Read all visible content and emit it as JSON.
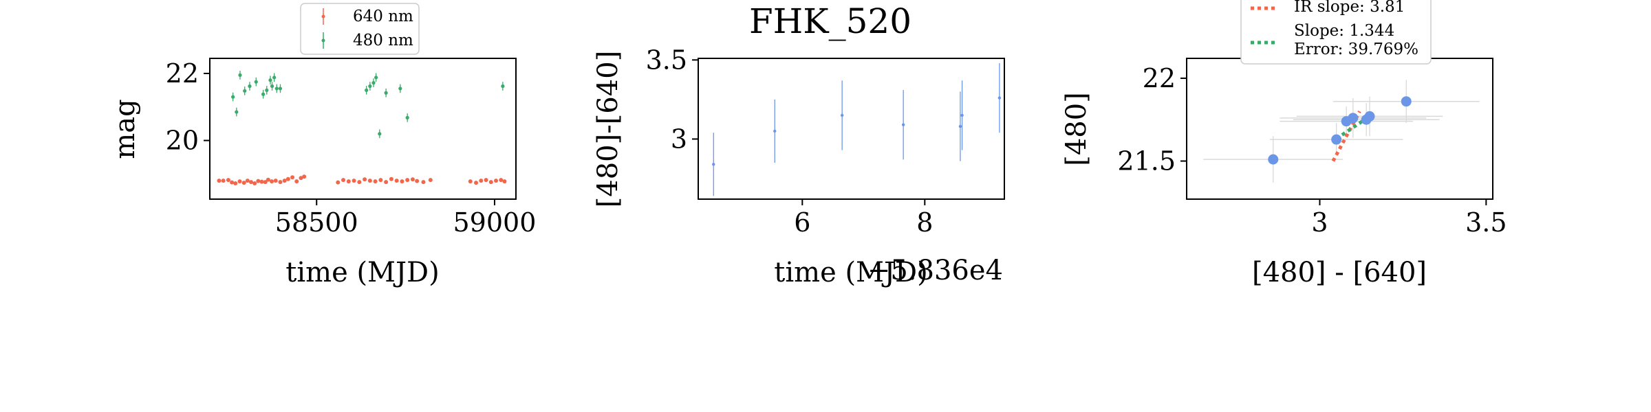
{
  "colors": {
    "red": "#f2674b",
    "green": "#3aaa6a",
    "blue": "#6b96e8",
    "errgray": "#d9d9d9"
  },
  "chart_data": [
    {
      "type": "scatter",
      "xlabel": "time (MJD)",
      "ylabel": "mag",
      "xlim": [
        58200,
        59060
      ],
      "ylim": [
        22.45,
        18.25
      ],
      "inverted_y": true,
      "xticks": [
        58500,
        59000
      ],
      "yticks": [
        20,
        22
      ],
      "legend_placement": "top-center",
      "series": [
        {
          "name": "640 nm",
          "color": "#f2674b",
          "errors": false,
          "x": [
            58226,
            58238,
            58252,
            58262,
            58272,
            58284,
            58296,
            58306,
            58316,
            58326,
            58336,
            58346,
            58356,
            58364,
            58374,
            58385,
            58398,
            58410,
            58420,
            58432,
            58444,
            58456,
            58465,
            58560,
            58575,
            58590,
            58605,
            58620,
            58635,
            58650,
            58665,
            58680,
            58695,
            58710,
            58725,
            58740,
            58755,
            58770,
            58782,
            58800,
            58820,
            58932,
            58948,
            58962,
            58976,
            58990,
            59004,
            59018,
            59028
          ],
          "y": [
            18.8,
            18.8,
            18.82,
            18.75,
            18.72,
            18.78,
            18.74,
            18.8,
            18.76,
            18.72,
            18.79,
            18.77,
            18.76,
            18.83,
            18.78,
            18.8,
            18.76,
            18.8,
            18.85,
            18.9,
            18.78,
            18.88,
            18.92,
            18.75,
            18.82,
            18.78,
            18.8,
            18.76,
            18.84,
            18.8,
            18.78,
            18.82,
            18.76,
            18.85,
            18.8,
            18.78,
            18.82,
            18.84,
            18.79,
            18.76,
            18.82,
            18.78,
            18.74,
            18.8,
            18.82,
            18.76,
            18.8,
            18.82,
            18.78
          ]
        },
        {
          "name": "480 nm",
          "color": "#3aaa6a",
          "errors": true,
          "x": [
            58265,
            58275,
            58285,
            58298,
            58312,
            58330,
            58350,
            58360,
            58370,
            58375,
            58381,
            58388,
            58398,
            58640,
            58650,
            58660,
            58667,
            58677,
            58695,
            58735,
            58755,
            59023
          ],
          "y": [
            21.3,
            20.85,
            21.95,
            21.48,
            21.62,
            21.75,
            21.38,
            21.5,
            21.8,
            21.62,
            21.88,
            21.55,
            21.55,
            21.5,
            21.62,
            21.72,
            21.88,
            20.2,
            21.42,
            21.55,
            20.68,
            21.62
          ]
        }
      ]
    },
    {
      "type": "scatter",
      "title": "FHK_520",
      "xlabel": "time (MJD)",
      "ylabel": "[480]-[640]",
      "offset_text": "+5.836e4",
      "x_tick_scale": 10000,
      "xlim": [
        58364.3,
        58369.3
      ],
      "ylim": [
        3.51,
        2.62
      ],
      "inverted_y": true,
      "xticks": [
        58366,
        58368
      ],
      "yticks": [
        3.0,
        3.5
      ],
      "series": [
        {
          "name": "",
          "color": "#6b96e8",
          "errors": true,
          "x": [
            58364.55,
            58365.55,
            58366.65,
            58367.65,
            58368.58,
            58368.61,
            58369.22
          ],
          "y": [
            2.84,
            3.05,
            3.15,
            3.09,
            3.08,
            3.15,
            3.26
          ],
          "yerr": [
            0.2,
            0.2,
            0.22,
            0.22,
            0.22,
            0.22,
            0.22
          ]
        }
      ]
    },
    {
      "type": "scatter",
      "xlabel": "[480] - [640]",
      "ylabel": "[480]",
      "xlim": [
        2.6,
        3.52
      ],
      "ylim": [
        22.12,
        21.27
      ],
      "inverted_y": true,
      "xticks": [
        3.0,
        3.5
      ],
      "yticks": [
        21.5,
        22.0
      ],
      "legend_placement": "top-center",
      "legend_entries": [
        {
          "label": "IR slope: 3.81",
          "color": "#f2674b"
        },
        {
          "label": "Slope: 1.344",
          "label2": "Error: 39.769%",
          "color": "#3aaa6a"
        }
      ],
      "series": [
        {
          "name": "",
          "color": "#6b96e8",
          "errors": true,
          "x": [
            2.86,
            3.05,
            3.08,
            3.1,
            3.14,
            3.15,
            3.26
          ],
          "y": [
            21.51,
            21.63,
            21.74,
            21.76,
            21.75,
            21.77,
            21.86
          ],
          "xerr": [
            0.21,
            0.2,
            0.2,
            0.22,
            0.22,
            0.22,
            0.22
          ],
          "yerr": [
            0.14,
            0.1,
            0.09,
            0.12,
            0.1,
            0.12,
            0.13
          ]
        }
      ],
      "fit_lines": [
        {
          "name": "IR slope: 3.81",
          "color": "#f2674b",
          "style": "dotted",
          "x": [
            3.04,
            3.12
          ],
          "y": [
            21.5,
            21.8
          ]
        },
        {
          "name": "Slope: 1.344",
          "color": "#3aaa6a",
          "style": "dotted",
          "x": [
            3.05,
            3.15
          ],
          "y": [
            21.635,
            21.77
          ]
        }
      ]
    }
  ]
}
